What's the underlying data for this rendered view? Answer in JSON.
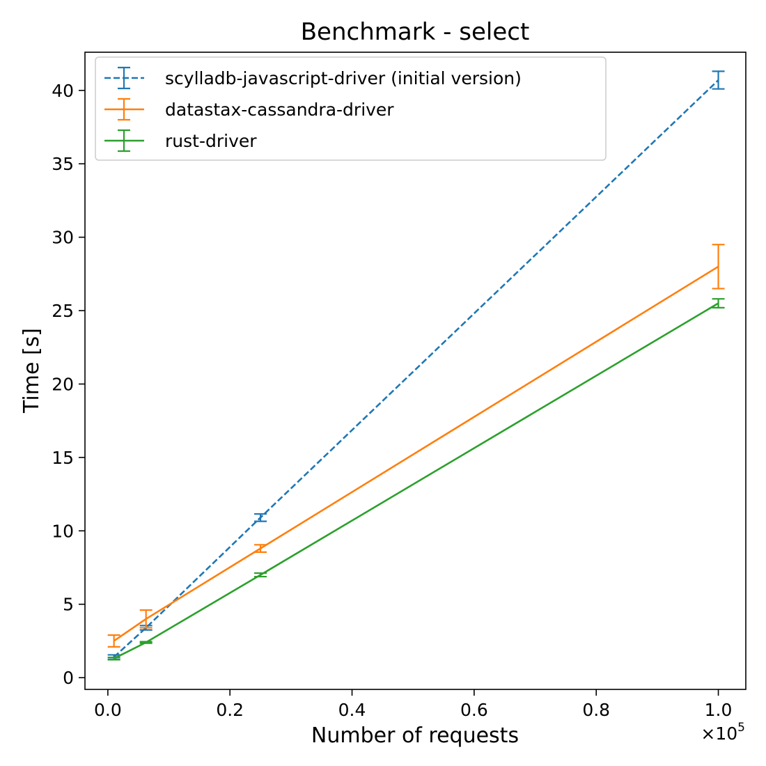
{
  "chart_data": {
    "type": "line",
    "title": "Benchmark - select",
    "xlabel": "Number of requests",
    "ylabel": "Time [s]",
    "x_offset_label": "×10",
    "x_offset_exponent": "5",
    "xlim": [
      -0.0375,
      1.045
    ],
    "ylim": [
      -0.8,
      42.6
    ],
    "grid": false,
    "legend_position": "top-left",
    "x_ticks": [
      0.0,
      0.2,
      0.4,
      0.6,
      0.8,
      1.0
    ],
    "x_tick_labels": [
      "0.0",
      "0.2",
      "0.4",
      "0.6",
      "0.8",
      "1.0"
    ],
    "y_ticks": [
      0,
      5,
      10,
      15,
      20,
      25,
      30,
      35,
      40
    ],
    "y_tick_labels": [
      "0",
      "5",
      "10",
      "15",
      "20",
      "25",
      "30",
      "35",
      "40"
    ],
    "series": [
      {
        "name": "scylladb-javascript-driver (initial version)",
        "color": "#1f77b4",
        "dashed": true,
        "x": [
          0.01,
          0.0625,
          0.25,
          1.0
        ],
        "y": [
          1.4,
          3.4,
          10.9,
          40.7
        ],
        "err": [
          0.15,
          0.15,
          0.25,
          0.6
        ]
      },
      {
        "name": "datastax-cassandra-driver",
        "color": "#ff7f0e",
        "dashed": false,
        "x": [
          0.01,
          0.0625,
          0.25,
          1.0
        ],
        "y": [
          2.5,
          4.0,
          8.8,
          28.0
        ],
        "err": [
          0.4,
          0.6,
          0.25,
          1.5
        ]
      },
      {
        "name": "rust-driver",
        "color": "#2ca02c",
        "dashed": false,
        "x": [
          0.01,
          0.0625,
          0.25,
          1.0
        ],
        "y": [
          1.3,
          2.4,
          7.0,
          25.5
        ],
        "err": [
          0.08,
          0.05,
          0.12,
          0.3
        ]
      }
    ]
  }
}
